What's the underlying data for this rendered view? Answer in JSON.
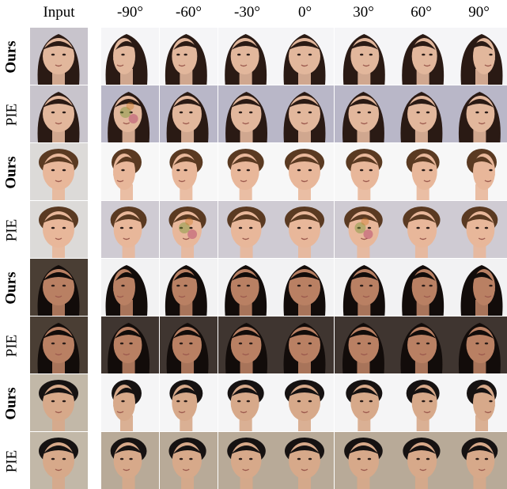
{
  "header": {
    "input": "Input",
    "angles": [
      "-90°",
      "-60°",
      "-30°",
      "0°",
      "30°",
      "60°",
      "90°"
    ]
  },
  "rows": [
    {
      "method": "Ours",
      "face": "asian-woman"
    },
    {
      "method": "PIE",
      "face": "asian-woman"
    },
    {
      "method": "Ours",
      "face": "boy"
    },
    {
      "method": "PIE",
      "face": "boy"
    },
    {
      "method": "Ours",
      "face": "dark-haired-woman"
    },
    {
      "method": "PIE",
      "face": "dark-haired-woman"
    },
    {
      "method": "Ours",
      "face": "asian-boy"
    },
    {
      "method": "PIE",
      "face": "asian-boy"
    }
  ],
  "colors": {
    "ours_bg": "#f4f4f6",
    "pie_bg": "#c9c6d0"
  }
}
